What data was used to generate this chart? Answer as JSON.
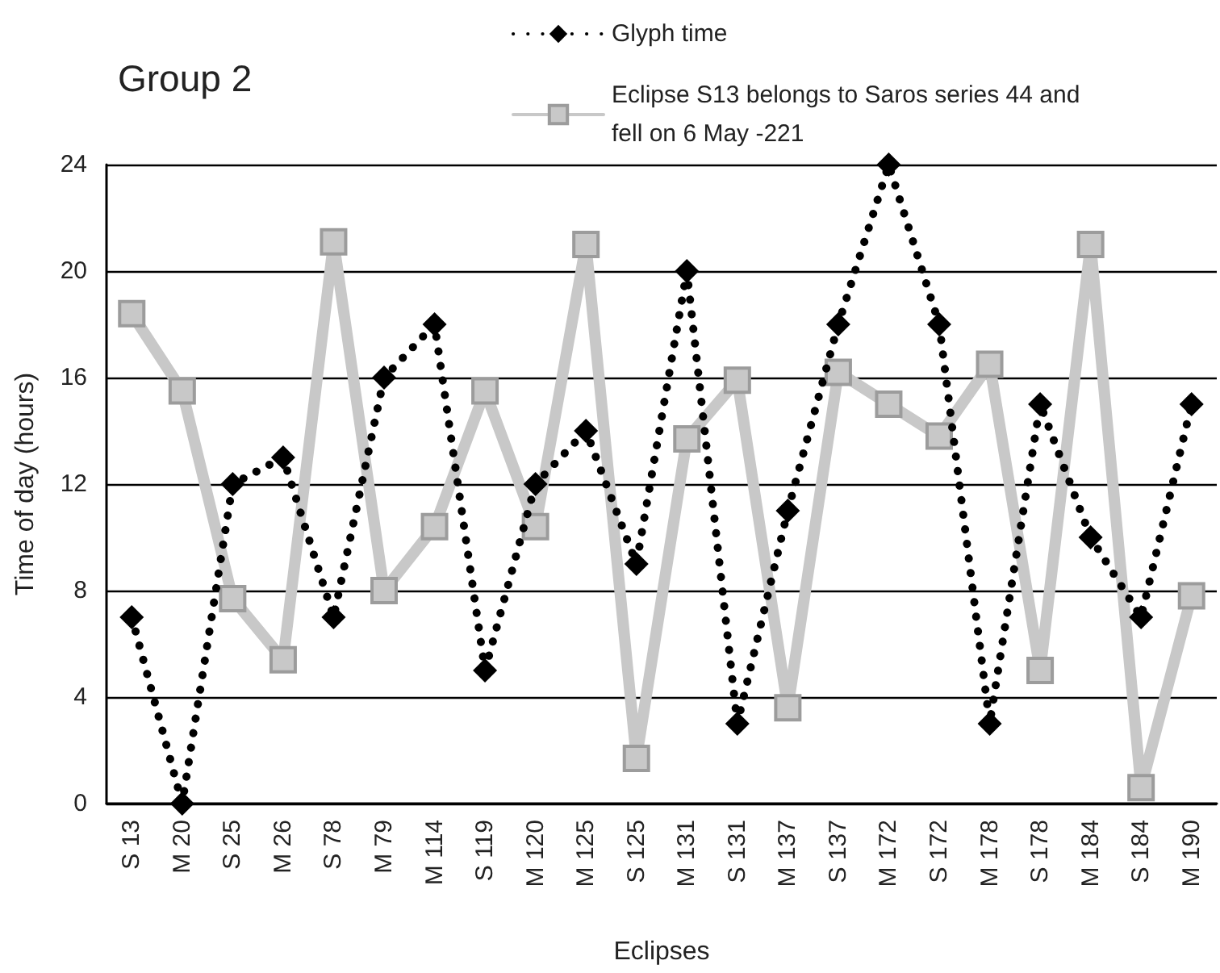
{
  "chart_data": {
    "type": "line",
    "title": "Group 2",
    "xlabel": "Eclipses",
    "ylabel": "Time of day (hours)",
    "categories": [
      "S 13",
      "M 20",
      "S 25",
      "M 26",
      "S 78",
      "M 79",
      "M 114",
      "S 119",
      "M 120",
      "M 125",
      "S 125",
      "M 131",
      "S 131",
      "M 137",
      "S 137",
      "M 172",
      "S 172",
      "M 178",
      "S 178",
      "M 184",
      "S 184",
      "M 190"
    ],
    "series": [
      {
        "name": "Glyph time",
        "color": "#000000",
        "line_style": "dotted",
        "marker": "diamond",
        "values": [
          7,
          0,
          12,
          13,
          7,
          16,
          18,
          5,
          12,
          14,
          9,
          20,
          3,
          11,
          18,
          24,
          18,
          3,
          15,
          10,
          7,
          15
        ]
      },
      {
        "name": "Eclipse S13 belongs to Saros series 44 and fell on 6 May -221",
        "color": "#c8c8c8",
        "line_style": "solid",
        "marker": "square",
        "values": [
          18.4,
          15.5,
          7.7,
          5.4,
          21.1,
          8.0,
          10.4,
          15.5,
          10.4,
          21.0,
          1.7,
          13.7,
          15.9,
          3.6,
          16.2,
          15.0,
          13.8,
          16.5,
          5.0,
          21.0,
          0.6,
          7.8
        ]
      }
    ],
    "ylim": [
      0,
      24
    ],
    "yticks": [
      0,
      4,
      8,
      12,
      16,
      20,
      24
    ],
    "grid": "y",
    "legend": "top right"
  }
}
